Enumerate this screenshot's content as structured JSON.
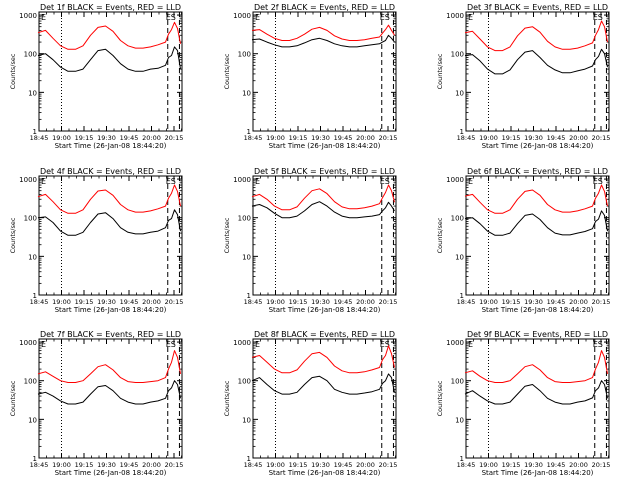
{
  "colors": {
    "events": "#000000",
    "lld": "#ff0000",
    "axes": "#000000"
  },
  "shared": {
    "xlabel": "Start Time (26-Jan-08 18:44:20)",
    "ylabel": "Counts/sec",
    "x_ticks": [
      "18:45",
      "19:00",
      "19:15",
      "19:30",
      "19:45",
      "20:00",
      "20:15"
    ],
    "x_tick_minutes": [
      0.67,
      15.67,
      30.67,
      45.67,
      60.67,
      75.67,
      90.67
    ],
    "x_range_minutes": [
      0.67,
      96.0
    ],
    "y_ticks": [
      "1",
      "10",
      "100",
      "1000"
    ],
    "y_tick_values": [
      1,
      10,
      100,
      1000
    ],
    "y_range": [
      1,
      1200
    ],
    "y_scale": "log",
    "marker_labels": {
      "E": "E",
      "ES": "ES"
    },
    "vline_minutes": {
      "dotted": 15.67,
      "dashed_1": 86.5,
      "dashed_2": 94.3
    }
  },
  "chart_data": [
    {
      "type": "line",
      "title": "Det 1f BLACK = Events, RED = LLD",
      "series": [
        {
          "name": "Events",
          "color": "#000000",
          "x": [
            0,
            5,
            10,
            15,
            20,
            25,
            30,
            35,
            40,
            45,
            50,
            55,
            60,
            65,
            70,
            75,
            80,
            85,
            87,
            89,
            91,
            93,
            95
          ],
          "values": [
            90,
            100,
            70,
            45,
            35,
            35,
            40,
            70,
            120,
            130,
            90,
            55,
            40,
            35,
            35,
            40,
            42,
            50,
            80,
            90,
            150,
            120,
            40
          ]
        },
        {
          "name": "LLD",
          "color": "#ff0000",
          "x": [
            0,
            5,
            10,
            15,
            20,
            25,
            30,
            35,
            40,
            45,
            50,
            55,
            60,
            65,
            70,
            75,
            80,
            85,
            87,
            89,
            91,
            93,
            95
          ],
          "values": [
            350,
            400,
            250,
            160,
            130,
            130,
            160,
            300,
            480,
            520,
            380,
            220,
            160,
            140,
            140,
            150,
            170,
            200,
            320,
            420,
            650,
            450,
            180
          ]
        }
      ]
    },
    {
      "type": "line",
      "title": "Det 2f BLACK = Events, RED = LLD",
      "series": [
        {
          "name": "Events",
          "color": "#000000",
          "x": [
            0,
            5,
            10,
            15,
            20,
            25,
            30,
            35,
            40,
            45,
            50,
            55,
            60,
            65,
            70,
            75,
            80,
            85,
            87,
            89,
            91,
            93,
            95
          ],
          "values": [
            230,
            240,
            200,
            170,
            150,
            150,
            160,
            190,
            230,
            250,
            220,
            180,
            160,
            150,
            150,
            160,
            170,
            180,
            200,
            220,
            300,
            250,
            200
          ]
        },
        {
          "name": "LLD",
          "color": "#ff0000",
          "x": [
            0,
            5,
            10,
            15,
            20,
            25,
            30,
            35,
            40,
            45,
            50,
            55,
            60,
            65,
            70,
            75,
            80,
            85,
            87,
            89,
            91,
            93,
            95
          ],
          "values": [
            400,
            420,
            320,
            250,
            220,
            220,
            250,
            320,
            430,
            480,
            400,
            290,
            240,
            220,
            220,
            230,
            250,
            270,
            340,
            420,
            550,
            400,
            300
          ]
        }
      ]
    },
    {
      "type": "line",
      "title": "Det 3f BLACK = Events, RED = LLD",
      "series": [
        {
          "name": "Events",
          "color": "#000000",
          "x": [
            0,
            5,
            10,
            15,
            20,
            25,
            30,
            35,
            40,
            45,
            50,
            55,
            60,
            65,
            70,
            75,
            80,
            85,
            87,
            89,
            91,
            93,
            95
          ],
          "values": [
            90,
            95,
            65,
            40,
            30,
            30,
            38,
            70,
            110,
            120,
            80,
            50,
            38,
            32,
            32,
            36,
            40,
            48,
            70,
            85,
            130,
            100,
            45
          ]
        },
        {
          "name": "LLD",
          "color": "#ff0000",
          "x": [
            0,
            5,
            10,
            15,
            20,
            25,
            30,
            35,
            40,
            45,
            50,
            55,
            60,
            65,
            70,
            75,
            80,
            85,
            87,
            89,
            91,
            93,
            95
          ],
          "values": [
            350,
            380,
            240,
            150,
            120,
            120,
            150,
            290,
            460,
            500,
            360,
            210,
            150,
            130,
            130,
            140,
            160,
            190,
            300,
            420,
            700,
            500,
            200
          ]
        }
      ]
    },
    {
      "type": "line",
      "title": "Det 4f BLACK = Events, RED = LLD",
      "series": [
        {
          "name": "Events",
          "color": "#000000",
          "x": [
            0,
            5,
            10,
            15,
            20,
            25,
            30,
            35,
            40,
            45,
            50,
            55,
            60,
            65,
            70,
            75,
            80,
            85,
            87,
            89,
            91,
            93,
            95
          ],
          "values": [
            100,
            105,
            75,
            45,
            35,
            35,
            42,
            75,
            125,
            135,
            95,
            55,
            42,
            38,
            38,
            42,
            45,
            55,
            85,
            95,
            160,
            120,
            45
          ]
        },
        {
          "name": "LLD",
          "color": "#ff0000",
          "x": [
            0,
            5,
            10,
            15,
            20,
            25,
            30,
            35,
            40,
            45,
            50,
            55,
            60,
            65,
            70,
            75,
            80,
            85,
            87,
            89,
            91,
            93,
            95
          ],
          "values": [
            350,
            400,
            260,
            160,
            130,
            130,
            160,
            300,
            490,
            520,
            380,
            220,
            160,
            140,
            140,
            150,
            170,
            200,
            320,
            430,
            700,
            480,
            200
          ]
        }
      ]
    },
    {
      "type": "line",
      "title": "Det 5f BLACK = Events, RED = LLD",
      "series": [
        {
          "name": "Events",
          "color": "#000000",
          "x": [
            0,
            5,
            10,
            15,
            20,
            25,
            30,
            35,
            40,
            45,
            50,
            55,
            60,
            65,
            70,
            75,
            80,
            85,
            87,
            89,
            91,
            93,
            95
          ],
          "values": [
            200,
            220,
            180,
            130,
            100,
            100,
            110,
            150,
            220,
            260,
            200,
            140,
            110,
            100,
            100,
            105,
            110,
            120,
            150,
            180,
            250,
            200,
            150
          ]
        },
        {
          "name": "LLD",
          "color": "#ff0000",
          "x": [
            0,
            5,
            10,
            15,
            20,
            25,
            30,
            35,
            40,
            45,
            50,
            55,
            60,
            65,
            70,
            75,
            80,
            85,
            87,
            89,
            91,
            93,
            95
          ],
          "values": [
            350,
            400,
            300,
            200,
            160,
            160,
            190,
            320,
            500,
            560,
            420,
            260,
            190,
            170,
            170,
            180,
            200,
            230,
            330,
            450,
            700,
            500,
            250
          ]
        }
      ]
    },
    {
      "type": "line",
      "title": "Det 6f BLACK = Events, RED = LLD",
      "series": [
        {
          "name": "Events",
          "color": "#000000",
          "x": [
            0,
            5,
            10,
            15,
            20,
            25,
            30,
            35,
            40,
            45,
            50,
            55,
            60,
            65,
            70,
            75,
            80,
            85,
            87,
            89,
            91,
            93,
            95
          ],
          "values": [
            95,
            100,
            70,
            45,
            35,
            35,
            40,
            70,
            115,
            125,
            90,
            55,
            40,
            36,
            36,
            40,
            44,
            52,
            80,
            92,
            150,
            115,
            45
          ]
        },
        {
          "name": "LLD",
          "color": "#ff0000",
          "x": [
            0,
            5,
            10,
            15,
            20,
            25,
            30,
            35,
            40,
            45,
            50,
            55,
            60,
            65,
            70,
            75,
            80,
            85,
            87,
            89,
            91,
            93,
            95
          ],
          "values": [
            360,
            400,
            250,
            160,
            130,
            130,
            160,
            300,
            480,
            520,
            380,
            220,
            160,
            140,
            140,
            150,
            170,
            200,
            320,
            430,
            700,
            480,
            200
          ]
        }
      ]
    },
    {
      "type": "line",
      "title": "Det 7f BLACK = Events, RED = LLD",
      "series": [
        {
          "name": "Events",
          "color": "#000000",
          "x": [
            0,
            5,
            10,
            15,
            20,
            25,
            30,
            35,
            40,
            45,
            50,
            55,
            60,
            65,
            70,
            75,
            80,
            85,
            87,
            89,
            91,
            93,
            95
          ],
          "values": [
            45,
            50,
            40,
            30,
            25,
            25,
            28,
            45,
            70,
            75,
            55,
            35,
            28,
            25,
            25,
            28,
            30,
            35,
            55,
            65,
            100,
            80,
            35
          ]
        },
        {
          "name": "LLD",
          "color": "#ff0000",
          "x": [
            0,
            5,
            10,
            15,
            20,
            25,
            30,
            35,
            40,
            45,
            50,
            55,
            60,
            65,
            70,
            75,
            80,
            85,
            87,
            89,
            91,
            93,
            95
          ],
          "values": [
            150,
            170,
            130,
            100,
            90,
            90,
            100,
            150,
            230,
            260,
            190,
            120,
            95,
            90,
            90,
            95,
            100,
            120,
            200,
            300,
            600,
            400,
            150
          ]
        }
      ]
    },
    {
      "type": "line",
      "title": "Det 8f BLACK = Events, RED = LLD",
      "series": [
        {
          "name": "Events",
          "color": "#000000",
          "x": [
            0,
            5,
            10,
            15,
            20,
            25,
            30,
            35,
            40,
            45,
            50,
            55,
            60,
            65,
            70,
            75,
            80,
            85,
            87,
            89,
            91,
            93,
            95
          ],
          "values": [
            100,
            120,
            80,
            55,
            45,
            45,
            50,
            80,
            120,
            130,
            100,
            60,
            50,
            45,
            45,
            48,
            52,
            60,
            85,
            100,
            150,
            120,
            50
          ]
        },
        {
          "name": "LLD",
          "color": "#ff0000",
          "x": [
            0,
            5,
            10,
            15,
            20,
            25,
            30,
            35,
            40,
            45,
            50,
            55,
            60,
            65,
            70,
            75,
            80,
            85,
            87,
            89,
            91,
            93,
            95
          ],
          "values": [
            400,
            450,
            300,
            200,
            160,
            160,
            190,
            320,
            500,
            540,
            400,
            240,
            180,
            160,
            160,
            170,
            190,
            220,
            350,
            450,
            800,
            500,
            220
          ]
        }
      ]
    },
    {
      "type": "line",
      "title": "Det 9f BLACK = Events, RED = LLD",
      "series": [
        {
          "name": "Events",
          "color": "#000000",
          "x": [
            0,
            5,
            10,
            15,
            20,
            25,
            30,
            35,
            40,
            45,
            50,
            55,
            60,
            65,
            70,
            75,
            80,
            85,
            87,
            89,
            91,
            93,
            95
          ],
          "values": [
            45,
            55,
            40,
            30,
            25,
            25,
            28,
            45,
            72,
            80,
            55,
            35,
            28,
            25,
            25,
            28,
            30,
            36,
            55,
            65,
            100,
            80,
            35
          ]
        },
        {
          "name": "LLD",
          "color": "#ff0000",
          "x": [
            0,
            5,
            10,
            15,
            20,
            25,
            30,
            35,
            40,
            45,
            50,
            55,
            60,
            65,
            70,
            75,
            80,
            85,
            87,
            89,
            91,
            93,
            95
          ],
          "values": [
            160,
            180,
            130,
            100,
            90,
            90,
            100,
            150,
            230,
            260,
            190,
            120,
            95,
            90,
            90,
            95,
            100,
            120,
            200,
            300,
            600,
            400,
            150
          ]
        }
      ]
    }
  ]
}
